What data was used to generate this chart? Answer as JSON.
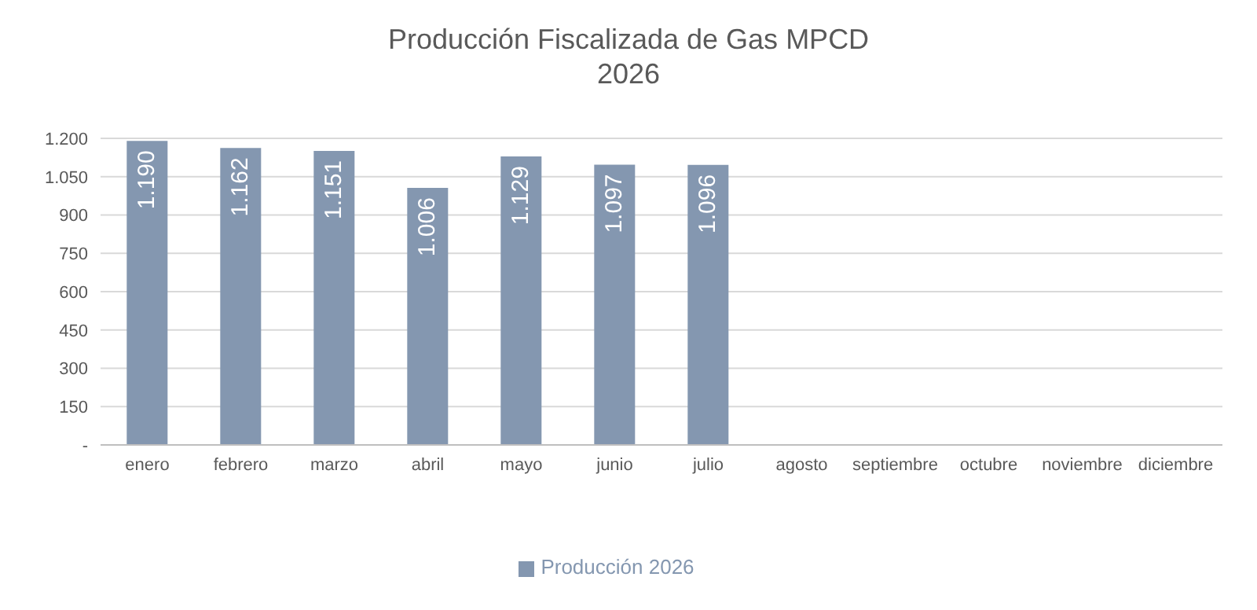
{
  "chart_data": {
    "type": "bar",
    "title": "Producción Fiscalizada de Gas MPCD",
    "subtitle": "2026",
    "categories": [
      "enero",
      "febrero",
      "marzo",
      "abril",
      "mayo",
      "junio",
      "julio",
      "agosto",
      "septiembre",
      "octubre",
      "noviembre",
      "diciembre"
    ],
    "series": [
      {
        "name": "Producción 2026",
        "color": "#8497b0",
        "values": [
          1190,
          1162,
          1151,
          1006,
          1129,
          1097,
          1096,
          null,
          null,
          null,
          null,
          null
        ],
        "value_labels": [
          "1.190",
          "1.162",
          "1.151",
          "1.006",
          "1.129",
          "1.097",
          "1.096",
          null,
          null,
          null,
          null,
          null
        ]
      }
    ],
    "ylim": [
      0,
      1200
    ],
    "yticks": [
      {
        "value": 0,
        "label": "-"
      },
      150,
      300,
      450,
      600,
      750,
      900,
      {
        "value": 1050,
        "label": "1.050"
      },
      {
        "value": 1200,
        "label": "1.200"
      }
    ],
    "grid": "y",
    "legend": "bottom"
  }
}
